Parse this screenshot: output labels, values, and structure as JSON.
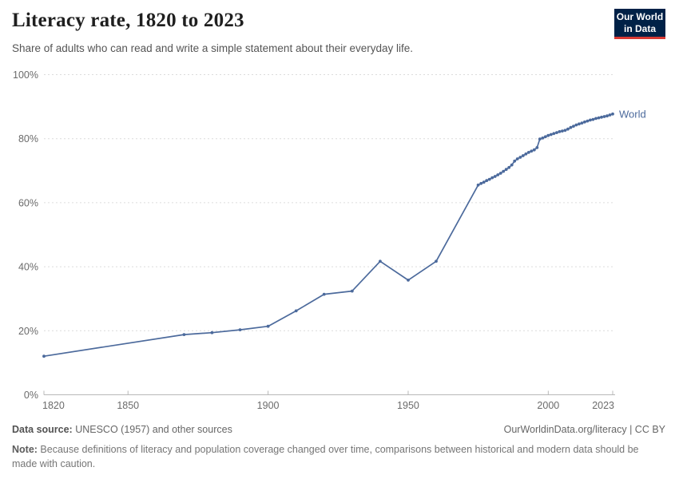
{
  "header": {
    "title": "Literacy rate, 1820 to 2023",
    "subtitle": "Share of adults who can read and write a simple statement about their everyday life.",
    "logo": {
      "line1": "Our World",
      "line2": "in Data",
      "bg_color": "#002147",
      "accent_color": "#d93a34"
    }
  },
  "chart_data": {
    "type": "line",
    "title": "Literacy rate, 1820 to 2023",
    "xlabel": "",
    "ylabel": "",
    "xlim": [
      1820,
      2023
    ],
    "ylim": [
      0,
      100
    ],
    "x_ticks": [
      1820,
      1850,
      1900,
      1950,
      2000,
      2023
    ],
    "y_ticks": [
      0,
      20,
      40,
      60,
      80,
      100
    ],
    "y_tick_suffix": "%",
    "grid": "dashed-horizontal",
    "legend_position": "end-of-line-label",
    "line_color": "#4C6A9C",
    "grid_color": "#dcdcdc",
    "axis_color": "#b8b8b8",
    "tick_text_color": "#6b6b6b",
    "series": [
      {
        "name": "World",
        "points": [
          [
            1820,
            12.05
          ],
          [
            1870,
            18.8
          ],
          [
            1880,
            19.4
          ],
          [
            1890,
            20.3
          ],
          [
            1900,
            21.4
          ],
          [
            1910,
            26.2
          ],
          [
            1920,
            31.4
          ],
          [
            1930,
            32.4
          ],
          [
            1940,
            41.7
          ],
          [
            1950,
            35.8
          ],
          [
            1960,
            41.7
          ],
          [
            1975,
            65.5
          ],
          [
            1976,
            66.0
          ],
          [
            1977,
            66.4
          ],
          [
            1978,
            66.9
          ],
          [
            1979,
            67.3
          ],
          [
            1980,
            67.8
          ],
          [
            1981,
            68.2
          ],
          [
            1982,
            68.7
          ],
          [
            1983,
            69.2
          ],
          [
            1984,
            69.8
          ],
          [
            1985,
            70.4
          ],
          [
            1986,
            71.0
          ],
          [
            1987,
            71.8
          ],
          [
            1988,
            73.0
          ],
          [
            1989,
            73.7
          ],
          [
            1990,
            74.2
          ],
          [
            1991,
            74.7
          ],
          [
            1992,
            75.2
          ],
          [
            1993,
            75.7
          ],
          [
            1994,
            76.1
          ],
          [
            1995,
            76.5
          ],
          [
            1996,
            77.2
          ],
          [
            1997,
            79.9
          ],
          [
            1998,
            80.2
          ],
          [
            1999,
            80.6
          ],
          [
            2000,
            81.0
          ],
          [
            2001,
            81.3
          ],
          [
            2002,
            81.6
          ],
          [
            2003,
            81.9
          ],
          [
            2004,
            82.2
          ],
          [
            2005,
            82.4
          ],
          [
            2006,
            82.6
          ],
          [
            2007,
            83.0
          ],
          [
            2008,
            83.5
          ],
          [
            2009,
            83.9
          ],
          [
            2010,
            84.3
          ],
          [
            2011,
            84.6
          ],
          [
            2012,
            84.9
          ],
          [
            2013,
            85.2
          ],
          [
            2014,
            85.5
          ],
          [
            2015,
            85.8
          ],
          [
            2016,
            86.0
          ],
          [
            2017,
            86.3
          ],
          [
            2018,
            86.5
          ],
          [
            2019,
            86.7
          ],
          [
            2020,
            86.9
          ],
          [
            2021,
            87.1
          ],
          [
            2022,
            87.4
          ],
          [
            2023,
            87.7
          ]
        ]
      }
    ]
  },
  "footer": {
    "source_label": "Data source:",
    "source_text": " UNESCO (1957) and other sources",
    "link_text": "OurWorldinData.org/literacy | CC BY",
    "note_label": "Note:",
    "note_text": " Because definitions of literacy and population coverage changed over time, comparisons between historical and modern data should be made with caution."
  }
}
